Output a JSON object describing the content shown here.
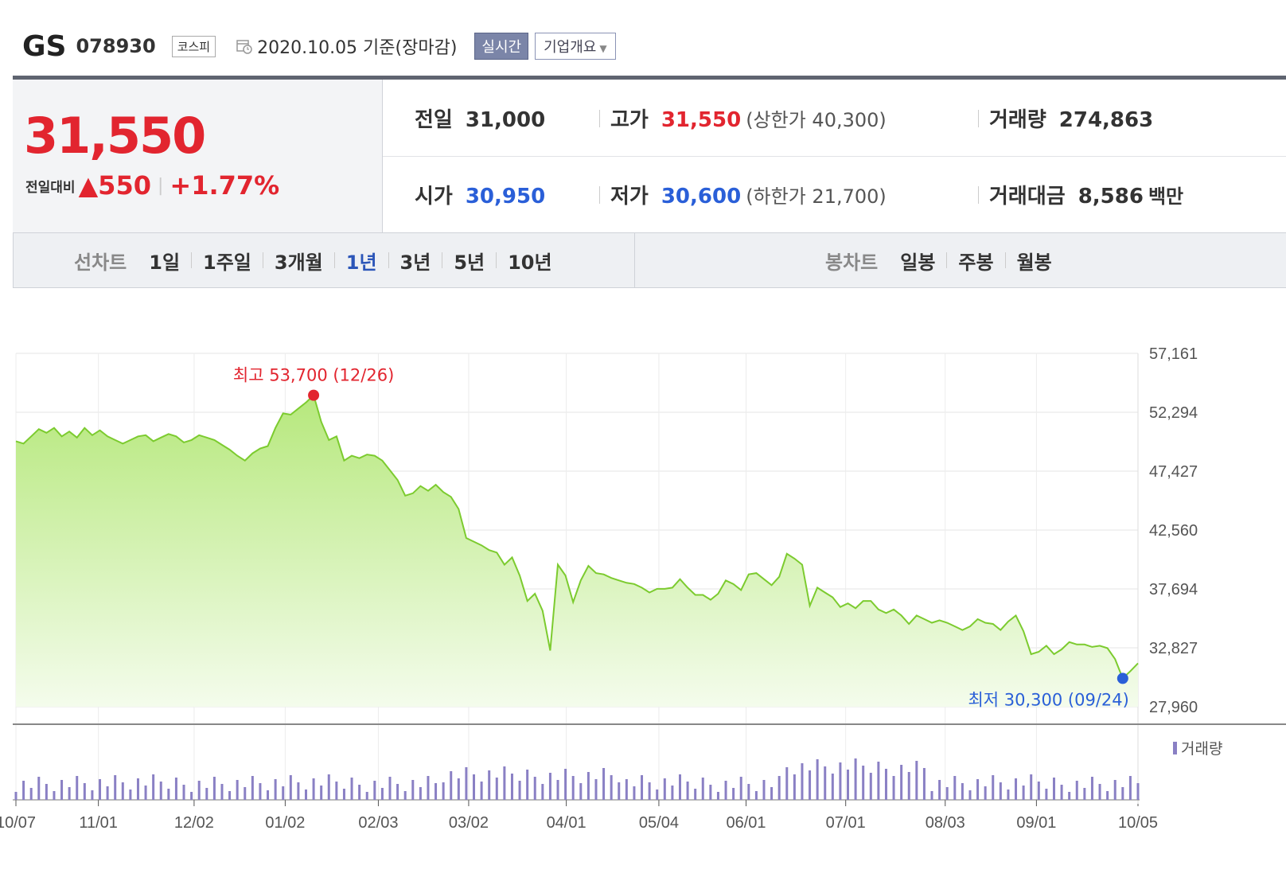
{
  "header": {
    "name": "GS",
    "code": "078930",
    "market": "코스피",
    "date": "2020.10.05 기준(장마감)",
    "realtime": "실시간",
    "company": "기업개요"
  },
  "price": {
    "current": "31,550",
    "change_label": "전일대비",
    "change_arrow": "▲",
    "change": "550",
    "change_pct": "+1.77%"
  },
  "stats": {
    "prev_label": "전일",
    "prev": "31,000",
    "high_label": "고가",
    "high": "31,550",
    "high_note": "(상한가 40,300)",
    "volume_label": "거래량",
    "volume": "274,863",
    "open_label": "시가",
    "open": "30,950",
    "low_label": "저가",
    "low": "30,600",
    "low_note": "(하한가 21,700)",
    "amount_label": "거래대금",
    "amount": "8,586",
    "amount_unit": "백만"
  },
  "tabs": {
    "line_title": "선차트",
    "line": [
      "1일",
      "1주일",
      "3개월",
      "1년",
      "3년",
      "5년",
      "10년"
    ],
    "line_active": "1년",
    "candle_title": "봉차트",
    "candle": [
      "일봉",
      "주봉",
      "월봉"
    ]
  },
  "colors": {
    "up": "#e2252f",
    "down": "#2a5fd8",
    "line": "#7ccb2f",
    "volume": "#8a80c4"
  },
  "chart_data": {
    "type": "area",
    "y_ticks": [
      "57,161",
      "52,294",
      "47,427",
      "42,560",
      "37,694",
      "32,827",
      "27,960"
    ],
    "ylim": [
      27960,
      57161
    ],
    "x_ticks": [
      "10/07",
      "11/01",
      "12/02",
      "01/02",
      "02/03",
      "03/02",
      "04/01",
      "05/04",
      "06/01",
      "07/01",
      "08/03",
      "09/01",
      "10/05"
    ],
    "high_label": "최고 53,700 (12/26)",
    "low_label": "최저 30,300 (09/24)",
    "high": {
      "date": "12/26",
      "value": 53700
    },
    "low": {
      "date": "09/24",
      "value": 30300
    },
    "volume_label": "거래량",
    "series": [
      {
        "values": [
          49900,
          49700,
          50300,
          50900,
          50600,
          51000,
          50300,
          50700,
          50200,
          51000,
          50400,
          50800,
          50300,
          50000,
          49700,
          50000,
          50300,
          50400,
          49900,
          50200,
          50500,
          50300,
          49800,
          50000,
          50400,
          50200,
          50000,
          49600,
          49200,
          48700,
          48300,
          48900,
          49300,
          49500,
          51000,
          52200,
          52100,
          52600,
          53100,
          53700,
          51500,
          50000,
          50300,
          48300,
          48700,
          48500,
          48800,
          48700,
          48300,
          47500,
          46700,
          45400,
          45600,
          46200,
          45800,
          46300,
          45700,
          45300,
          44300,
          41900,
          41600,
          41300,
          40900,
          40700,
          39700,
          40300,
          38800,
          36700,
          37300,
          35900,
          32600,
          39700,
          38800,
          36600,
          38400,
          39600,
          39000,
          38900,
          38600,
          38400,
          38200,
          38100,
          37800,
          37400,
          37700,
          37700,
          37800,
          38500,
          37800,
          37200,
          37200,
          36800,
          37300,
          38400,
          38100,
          37600,
          38900,
          39000,
          38500,
          38000,
          38700,
          40600,
          40200,
          39700,
          36300,
          37800,
          37400,
          37000,
          36200,
          36500,
          36100,
          36700,
          36700,
          36000,
          35700,
          36000,
          35500,
          34800,
          35500,
          35200,
          34900,
          35100,
          34900,
          34600,
          34300,
          34600,
          35200,
          34900,
          34800,
          34300,
          35000,
          35500,
          34200,
          32300,
          32500,
          33000,
          32300,
          32700,
          33300,
          33100,
          33100,
          32900,
          33000,
          32800,
          31900,
          30300,
          30900,
          31550
        ]
      }
    ]
  }
}
